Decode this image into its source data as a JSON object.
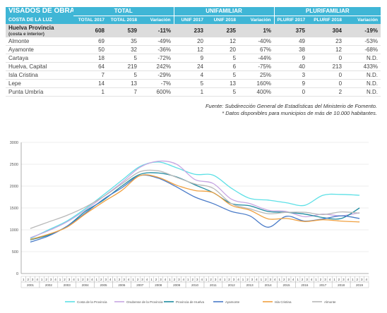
{
  "table": {
    "title": "VISADOS DE OBRA NUEVA",
    "subtitle": "COSTA DE LA LUZ",
    "groups": [
      "TOTAL",
      "UNIFAMILIAR",
      "PLURIFAMILIAR"
    ],
    "columns": [
      "TOTAL 2017",
      "TOTAL 2018",
      "Variación",
      "UNIF 2017",
      "UNIF 2018",
      "Variación",
      "PLURIF 2017",
      "PLURIF 2018",
      "Variación"
    ],
    "province": {
      "name": "Huelva Provincia",
      "note": "(costa e interior)",
      "cells": [
        "608",
        "539",
        "-11%",
        "233",
        "235",
        "1%",
        "375",
        "304",
        "-19%"
      ]
    },
    "rows": [
      {
        "name": "Almonte",
        "cells": [
          "69",
          "35",
          "-49%",
          "20",
          "12",
          "-40%",
          "49",
          "23",
          "-53%"
        ]
      },
      {
        "name": "Ayamonte",
        "cells": [
          "50",
          "32",
          "-36%",
          "12",
          "20",
          "67%",
          "38",
          "12",
          "-68%"
        ]
      },
      {
        "name": "Cartaya",
        "cells": [
          "18",
          "5",
          "-72%",
          "9",
          "5",
          "-44%",
          "9",
          "0",
          "N.D."
        ]
      },
      {
        "name": "Huelva, Capital",
        "cells": [
          "64",
          "219",
          "242%",
          "24",
          "6",
          "-75%",
          "40",
          "213",
          "433%"
        ]
      },
      {
        "name": "Isla Cristina",
        "cells": [
          "7",
          "5",
          "-29%",
          "4",
          "5",
          "25%",
          "3",
          "0",
          "N.D."
        ]
      },
      {
        "name": "Lepe",
        "cells": [
          "14",
          "13",
          "-7%",
          "5",
          "13",
          "160%",
          "9",
          "0",
          "N.D."
        ]
      },
      {
        "name": "Punta Umbría",
        "cells": [
          "1",
          "7",
          "600%",
          "1",
          "5",
          "400%",
          "0",
          "2",
          "N.D."
        ]
      }
    ]
  },
  "source_lines": [
    "Fuente: Subdirección General de Estadísticas del Ministerio de Fomento.",
    "* Datos disponibles para municipios de más de 10.000 habitantes."
  ],
  "chart_data": {
    "type": "line",
    "title": "",
    "xlabel": "",
    "ylabel": "",
    "ylim": [
      0,
      3000
    ],
    "yticks": [
      0,
      500,
      1000,
      1500,
      2000,
      2500,
      3000
    ],
    "years": [
      "2001",
      "2002",
      "2003",
      "2004",
      "2005",
      "2006",
      "2007",
      "2008",
      "2009",
      "2010",
      "2011",
      "2012",
      "2013",
      "2014",
      "2015",
      "2016",
      "2017",
      "2018",
      "2019"
    ],
    "quarters": [
      "1",
      "2",
      "3",
      "4"
    ],
    "x_note": "one point per year (Q1), 2001–2019",
    "legend_position": "bottom",
    "grid": true,
    "series": [
      {
        "name": "Costa de la Provincia",
        "color": "#5de0e6",
        "values": [
          800,
          1000,
          1200,
          1480,
          1800,
          2130,
          2450,
          2550,
          2420,
          2270,
          2250,
          1950,
          1720,
          1680,
          1620,
          1560,
          1790,
          1810,
          1790
        ]
      },
      {
        "name": "Onubense de la Provincia",
        "color": "#c7a6e2",
        "values": [
          820,
          980,
          1180,
          1450,
          1760,
          2080,
          2430,
          2570,
          2500,
          2150,
          2060,
          1700,
          1600,
          1450,
          1420,
          1300,
          1360,
          1320,
          1390
        ]
      },
      {
        "name": "Provincia de Huelva",
        "color": "#1e8aa0",
        "values": [
          770,
          880,
          1080,
          1420,
          1680,
          2000,
          2270,
          2300,
          2210,
          2030,
          1850,
          1600,
          1550,
          1420,
          1400,
          1360,
          1280,
          1260,
          1500
        ]
      },
      {
        "name": "Ayamonte",
        "color": "#4a7bc8",
        "values": [
          720,
          860,
          1080,
          1380,
          1700,
          1960,
          2240,
          2180,
          1980,
          1750,
          1600,
          1420,
          1320,
          1060,
          1310,
          1200,
          1250,
          1320,
          1260
        ]
      },
      {
        "name": "Isla Cristina",
        "color": "#f0a040",
        "values": [
          780,
          900,
          1060,
          1360,
          1640,
          1900,
          2240,
          2200,
          2020,
          1900,
          1850,
          1560,
          1450,
          1250,
          1260,
          1190,
          1230,
          1200,
          1180
        ]
      },
      {
        "name": "Almonte",
        "color": "#b8b8b8",
        "values": [
          1030,
          1180,
          1330,
          1520,
          1760,
          2050,
          2330,
          2350,
          2200,
          2050,
          1950,
          1600,
          1480,
          1370,
          1400,
          1400,
          1350,
          1410,
          1380
        ]
      }
    ]
  }
}
